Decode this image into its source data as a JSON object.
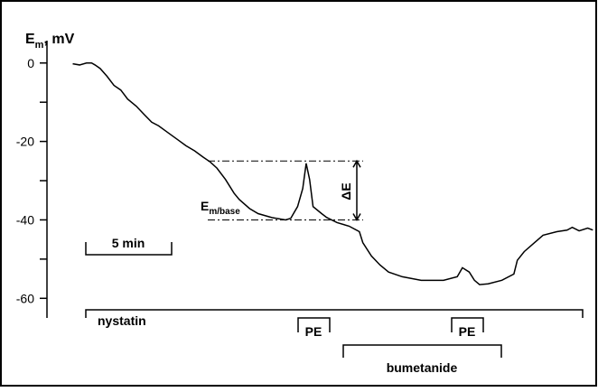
{
  "chart_data": {
    "type": "line",
    "ylabel": {
      "main": "E",
      "sub": "m",
      "rest": ", mV"
    },
    "x": [
      0,
      0.4,
      0.8,
      1.1,
      1.3,
      1.6,
      2,
      2.4,
      2.8,
      3.2,
      3.7,
      4.2,
      4.6,
      5,
      5.5,
      6.1,
      6.6,
      7.1,
      7.6,
      8,
      8.4,
      8.9,
      9.4,
      9.7,
      10.3,
      10.8,
      11.6,
      12.4,
      12.7,
      13.1,
      13.4,
      13.6,
      13.8,
      14,
      14.5,
      14.8,
      15.4,
      16.1,
      16.7,
      16.9,
      17.4,
      17.9,
      18.4,
      19.2,
      20.3,
      21.6,
      22.4,
      22.7,
      23.1,
      23.4,
      23.7,
      24.2,
      25,
      25.7,
      25.9,
      26.3,
      26.8,
      27.4,
      28.2,
      28.8,
      29.1,
      29.5,
      30,
      30.3
    ],
    "series": [
      {
        "color": "#000000",
        "values": [
          -0.2,
          -0.5,
          0,
          0,
          -0.5,
          -1.4,
          -3.4,
          -5.7,
          -6.9,
          -9.2,
          -11,
          -13.3,
          -15.1,
          -16,
          -17.6,
          -19.5,
          -21.1,
          -22.4,
          -24,
          -25.2,
          -26.8,
          -29.7,
          -33.2,
          -34.8,
          -37.1,
          -38.4,
          -39.4,
          -40,
          -39.6,
          -36.6,
          -32,
          -25.6,
          -29.7,
          -36.6,
          -38.4,
          -39.4,
          -40.7,
          -41.6,
          -43,
          -45.8,
          -49.2,
          -51.5,
          -53.3,
          -54.5,
          -55.4,
          -55.4,
          -54.5,
          -52.2,
          -53.3,
          -55.4,
          -56.5,
          -56.3,
          -55.4,
          -53.8,
          -50.3,
          -48.1,
          -46.2,
          -43.9,
          -43,
          -42.6,
          -41.9,
          -42.8,
          -42.1,
          -42.6
        ]
      }
    ],
    "xlim": [
      -1.5,
      30.6
    ],
    "ylim": [
      -65,
      5.7
    ],
    "yticks": [
      0,
      -20,
      -40,
      -60
    ],
    "minor_yticks": [
      -10,
      -30,
      -50
    ],
    "reference_lines": [
      -25,
      -40
    ],
    "baseline_label": {
      "main": "E",
      "sub": "m/base"
    },
    "delta_label": "ΔE",
    "scale_bar": "5 min",
    "annotations": {
      "nystatin": "nystatin",
      "pe1": "PE",
      "pe2": "PE",
      "bumetanide": "bumetanide"
    }
  }
}
